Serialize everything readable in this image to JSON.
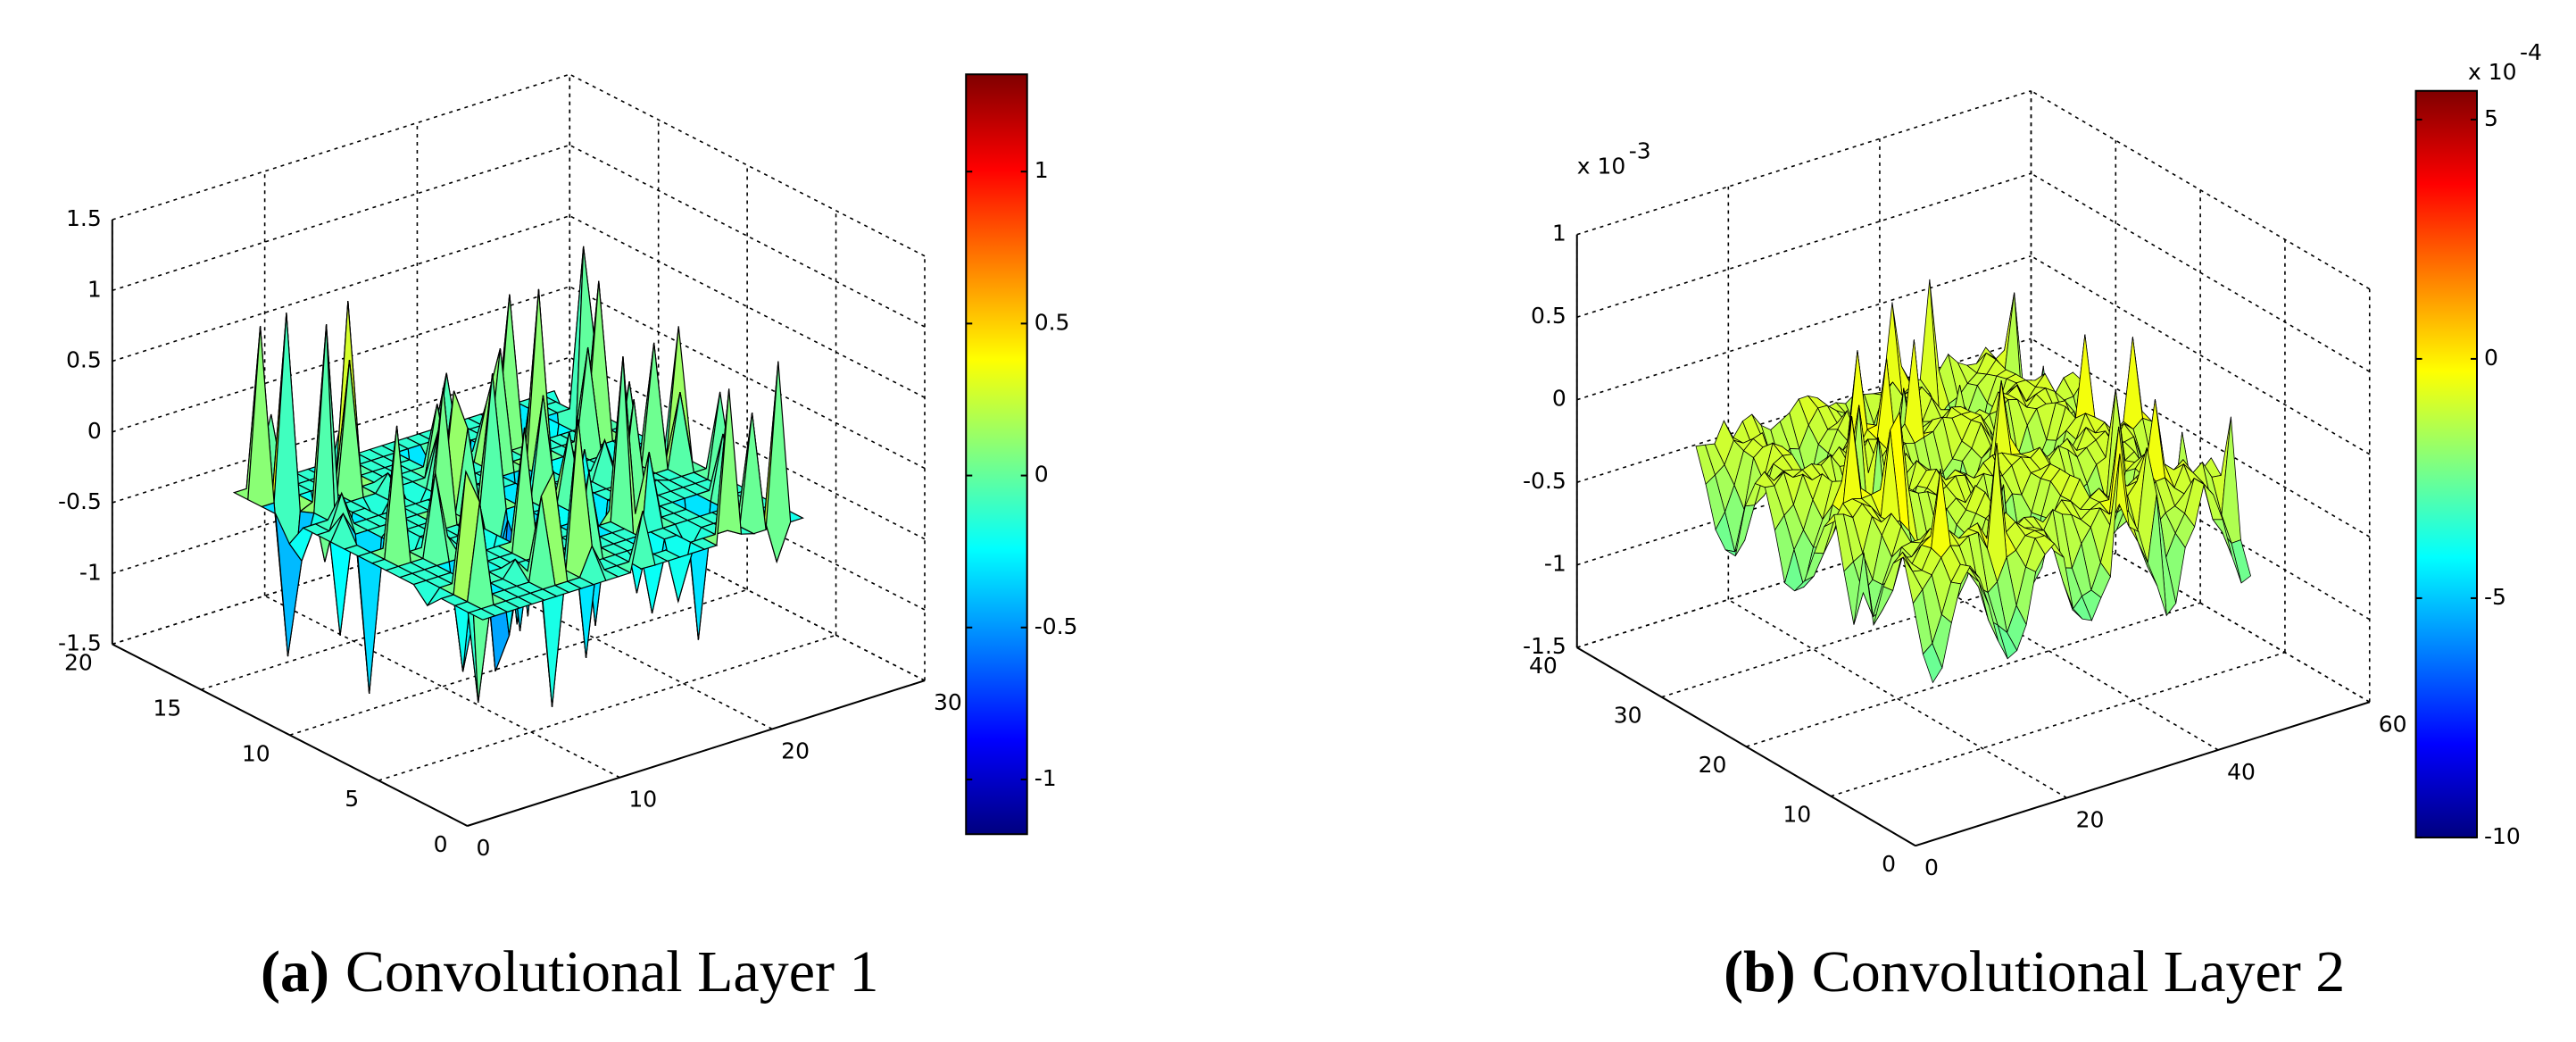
{
  "chart_data": [
    {
      "type": "surface",
      "panel_label": "(a)",
      "caption": "Convolutional Layer 1",
      "xlim": [
        0,
        30
      ],
      "xticks": [
        0,
        10,
        20,
        30
      ],
      "ylim": [
        0,
        20
      ],
      "yticks": [
        0,
        5,
        10,
        15,
        20
      ],
      "zlim": [
        -1.5,
        1.5
      ],
      "zticks": [
        -1.5,
        -1,
        -0.5,
        0,
        0.5,
        1,
        1.5
      ],
      "grid": true,
      "colorbar": {
        "clim": [
          -1.18,
          1.32
        ],
        "ticks": [
          -1,
          -0.5,
          0,
          0.5,
          1
        ]
      }
    },
    {
      "type": "surface",
      "panel_label": "(b)",
      "caption": "Convolutional Layer 2",
      "xlim": [
        0,
        60
      ],
      "xticks": [
        0,
        20,
        40,
        60
      ],
      "ylim": [
        0,
        40
      ],
      "yticks": [
        0,
        10,
        20,
        30,
        40
      ],
      "zlim": [
        -1.5,
        1
      ],
      "zticks": [
        -1.5,
        -1,
        -0.5,
        0,
        0.5,
        1
      ],
      "z_multiplier": {
        "base": "x 10",
        "exponent": "-3"
      },
      "grid": true,
      "colorbar": {
        "clim": [
          -10,
          5.6
        ],
        "ticks": [
          -10,
          -5,
          0,
          5
        ],
        "multiplier": {
          "base": "x 10",
          "exponent": "-4"
        }
      }
    }
  ]
}
